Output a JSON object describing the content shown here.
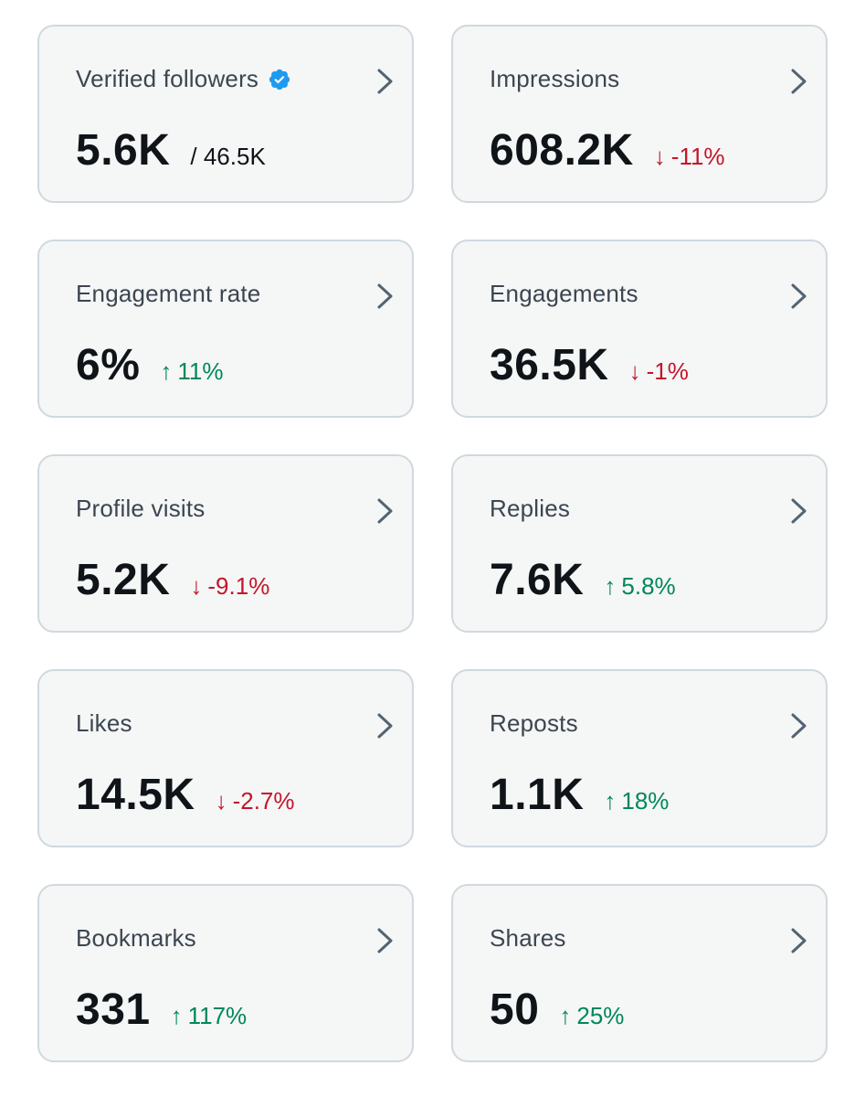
{
  "colors": {
    "card_bg": "#f5f6f6",
    "card_border": "#cfd9de",
    "up": "#00875a",
    "down": "#c4152a",
    "verified": "#1d9bf0"
  },
  "cards": [
    {
      "title": "Verified followers",
      "value": "5.6K",
      "total": "/ 46.5K",
      "verified_icon": "verified-badge-icon"
    },
    {
      "title": "Impressions",
      "value": "608.2K",
      "change": "-11%",
      "direction": "down",
      "arrow": "↓"
    },
    {
      "title": "Engagement rate",
      "value": "6%",
      "change": "11%",
      "direction": "up",
      "arrow": "↑"
    },
    {
      "title": "Engagements",
      "value": "36.5K",
      "change": "-1%",
      "direction": "down",
      "arrow": "↓"
    },
    {
      "title": "Profile visits",
      "value": "5.2K",
      "change": "-9.1%",
      "direction": "down",
      "arrow": "↓"
    },
    {
      "title": "Replies",
      "value": "7.6K",
      "change": "5.8%",
      "direction": "up",
      "arrow": "↑"
    },
    {
      "title": "Likes",
      "value": "14.5K",
      "change": "-2.7%",
      "direction": "down",
      "arrow": "↓"
    },
    {
      "title": "Reposts",
      "value": "1.1K",
      "change": "18%",
      "direction": "up",
      "arrow": "↑"
    },
    {
      "title": "Bookmarks",
      "value": "331",
      "change": "117%",
      "direction": "up",
      "arrow": "↑"
    },
    {
      "title": "Shares",
      "value": "50",
      "change": "25%",
      "direction": "up",
      "arrow": "↑"
    }
  ]
}
